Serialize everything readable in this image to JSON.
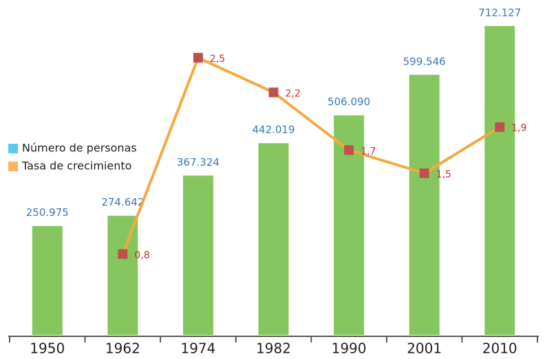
{
  "chart_data": {
    "type": "bar-line",
    "categories": [
      "1950",
      "1962",
      "1974",
      "1982",
      "1990",
      "2001",
      "2010"
    ],
    "series": [
      {
        "name": "Número de personas",
        "type": "bar",
        "color": "#85c75e",
        "legend_color": "#5bc8f0",
        "label_color": "#3a76b8",
        "values": [
          250975,
          274642,
          367324,
          442019,
          506090,
          599546,
          712127
        ],
        "value_labels": [
          "250.975",
          "274.642",
          "367.324",
          "442.019",
          "506.090",
          "599.546",
          "712.127"
        ]
      },
      {
        "name": "Tasa de crecimiento",
        "type": "line",
        "axis": "y2",
        "color": "#f4a940",
        "legend_color": "#f9b55b",
        "marker_color": "#c0504d",
        "label_color": "#d9262c",
        "values": [
          null,
          0.8,
          2.5,
          2.2,
          1.7,
          1.5,
          1.9
        ],
        "value_labels": [
          null,
          "0,8",
          "2,5",
          "2,2",
          "1,7",
          "1,5",
          "1,9"
        ]
      }
    ],
    "ylim": [
      0,
      772000
    ],
    "y2lim": [
      0.1,
      3.0
    ],
    "grid": false,
    "legend": "left"
  }
}
